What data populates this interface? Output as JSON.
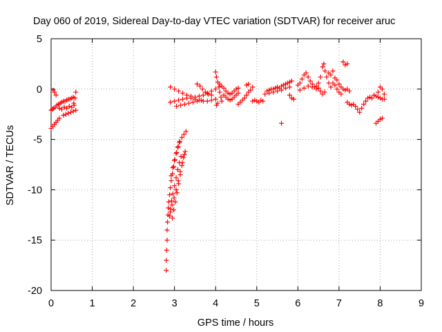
{
  "chart_data": {
    "type": "scatter",
    "title": "Day 060 of 2019, Sidereal Day-to-day VTEC variation (SDTVAR) for receiver aruc",
    "xlabel": "GPS time / hours",
    "ylabel": "SDTVAR / TECUs",
    "xlim": [
      0,
      9
    ],
    "ylim": [
      -20,
      5
    ],
    "x_ticks": [
      0,
      1,
      2,
      3,
      4,
      5,
      6,
      7,
      8,
      9
    ],
    "y_ticks": [
      -20,
      -15,
      -10,
      -5,
      0,
      5
    ],
    "x_tick_labels": [
      "0",
      "1",
      "2",
      "3",
      "4",
      "5",
      "6",
      "7",
      "8",
      "9"
    ],
    "y_tick_labels": [
      "-20",
      "-15",
      "-10",
      "-5",
      "0",
      "5"
    ],
    "grid": true,
    "marker": "+",
    "series": [
      {
        "name": "SDTVAR",
        "color": "#ff0000",
        "points": [
          [
            0.0,
            -2.1
          ],
          [
            0.03,
            -2.0
          ],
          [
            0.06,
            -1.9
          ],
          [
            0.1,
            -1.8
          ],
          [
            0.14,
            -1.6
          ],
          [
            0.18,
            -1.5
          ],
          [
            0.22,
            -1.4
          ],
          [
            0.26,
            -1.3
          ],
          [
            0.3,
            -1.2
          ],
          [
            0.34,
            -1.2
          ],
          [
            0.38,
            -1.1
          ],
          [
            0.42,
            -1.0
          ],
          [
            0.46,
            -1.0
          ],
          [
            0.5,
            -0.9
          ],
          [
            0.54,
            -0.8
          ],
          [
            0.05,
            -0.1
          ],
          [
            0.08,
            -0.3
          ],
          [
            0.12,
            -0.6
          ],
          [
            0.0,
            -3.9
          ],
          [
            0.04,
            -3.7
          ],
          [
            0.08,
            -3.5
          ],
          [
            0.12,
            -3.3
          ],
          [
            0.16,
            -3.1
          ],
          [
            0.2,
            -2.9
          ],
          [
            0.3,
            -2.6
          ],
          [
            0.36,
            -2.5
          ],
          [
            0.42,
            -2.4
          ],
          [
            0.48,
            -2.3
          ],
          [
            0.54,
            -2.2
          ],
          [
            0.6,
            -2.1
          ],
          [
            0.2,
            -1.9
          ],
          [
            0.26,
            -2.0
          ],
          [
            0.32,
            -1.8
          ],
          [
            0.38,
            -1.9
          ],
          [
            0.44,
            -1.7
          ],
          [
            0.5,
            -1.8
          ],
          [
            0.56,
            -1.6
          ],
          [
            0.6,
            -0.3
          ],
          [
            0.58,
            -0.9
          ],
          [
            0.55,
            -1.4
          ],
          [
            2.8,
            -18.0
          ],
          [
            2.8,
            -17.0
          ],
          [
            2.81,
            -16.0
          ],
          [
            2.82,
            -15.0
          ],
          [
            2.82,
            -14.0
          ],
          [
            2.83,
            -13.2
          ],
          [
            2.84,
            -12.5
          ],
          [
            2.85,
            -11.8
          ],
          [
            2.86,
            -11.2
          ],
          [
            2.88,
            -10.5
          ],
          [
            2.9,
            -9.8
          ],
          [
            2.92,
            -9.1
          ],
          [
            2.95,
            -8.4
          ],
          [
            2.98,
            -7.7
          ],
          [
            3.01,
            -7.0
          ],
          [
            3.05,
            -6.3
          ],
          [
            3.09,
            -5.7
          ],
          [
            3.13,
            -5.2
          ],
          [
            3.18,
            -4.8
          ],
          [
            3.23,
            -4.5
          ],
          [
            3.28,
            -4.2
          ],
          [
            2.88,
            -12.6
          ],
          [
            2.9,
            -11.9
          ],
          [
            2.93,
            -11.1
          ],
          [
            2.96,
            -10.4
          ],
          [
            3.0,
            -9.6
          ],
          [
            3.04,
            -8.8
          ],
          [
            3.08,
            -8.0
          ],
          [
            3.12,
            -7.3
          ],
          [
            3.16,
            -6.7
          ],
          [
            2.95,
            -12.8
          ],
          [
            2.98,
            -12.0
          ],
          [
            3.02,
            -11.2
          ],
          [
            3.06,
            -10.3
          ],
          [
            3.1,
            -9.4
          ],
          [
            3.14,
            -8.5
          ],
          [
            3.18,
            -7.6
          ],
          [
            3.22,
            -6.8
          ],
          [
            3.26,
            -6.2
          ],
          [
            2.9,
            -12.2
          ],
          [
            2.94,
            -11.5
          ],
          [
            2.99,
            -10.8
          ],
          [
            3.04,
            -10.0
          ],
          [
            3.09,
            -9.1
          ],
          [
            3.14,
            -8.2
          ],
          [
            3.19,
            -7.3
          ],
          [
            3.24,
            -6.5
          ],
          [
            2.92,
            -8.6
          ],
          [
            2.96,
            -7.8
          ],
          [
            3.0,
            -7.1
          ],
          [
            3.04,
            -6.4
          ],
          [
            3.08,
            -5.8
          ],
          [
            3.12,
            -5.3
          ],
          [
            2.9,
            0.2
          ],
          [
            3.0,
            0.0
          ],
          [
            3.1,
            -0.2
          ],
          [
            3.2,
            -0.4
          ],
          [
            3.3,
            -0.6
          ],
          [
            3.4,
            -0.7
          ],
          [
            3.5,
            -0.8
          ],
          [
            3.6,
            -0.7
          ],
          [
            3.7,
            -0.6
          ],
          [
            3.8,
            -0.4
          ],
          [
            3.9,
            -0.2
          ],
          [
            4.0,
            0.0
          ],
          [
            2.9,
            -1.3
          ],
          [
            3.0,
            -1.2
          ],
          [
            3.1,
            -1.1
          ],
          [
            3.2,
            -1.0
          ],
          [
            3.3,
            -0.9
          ],
          [
            3.4,
            -0.9
          ],
          [
            3.5,
            -1.0
          ],
          [
            3.6,
            -1.1
          ],
          [
            3.7,
            -1.2
          ],
          [
            3.8,
            -1.2
          ],
          [
            3.9,
            -1.1
          ],
          [
            4.0,
            -1.0
          ],
          [
            3.05,
            -1.7
          ],
          [
            3.15,
            -1.6
          ],
          [
            3.25,
            -1.5
          ],
          [
            3.35,
            -1.4
          ],
          [
            3.45,
            -1.3
          ],
          [
            3.55,
            -1.2
          ],
          [
            3.65,
            -1.1
          ],
          [
            3.55,
            0.5
          ],
          [
            3.62,
            0.3
          ],
          [
            3.68,
            0.0
          ],
          [
            3.75,
            -0.3
          ],
          [
            3.82,
            -0.5
          ],
          [
            3.9,
            -0.6
          ],
          [
            4.0,
            1.7
          ],
          [
            4.02,
            1.2
          ],
          [
            4.05,
            0.7
          ],
          [
            4.08,
            0.2
          ],
          [
            4.1,
            -0.3
          ],
          [
            4.13,
            -0.8
          ],
          [
            4.15,
            -1.2
          ],
          [
            4.02,
            -1.6
          ],
          [
            4.05,
            -1.4
          ],
          [
            4.1,
            0.5
          ],
          [
            4.15,
            0.3
          ],
          [
            4.2,
            0.1
          ],
          [
            4.25,
            -0.2
          ],
          [
            4.3,
            -0.4
          ],
          [
            4.35,
            -0.5
          ],
          [
            4.4,
            -0.4
          ],
          [
            4.45,
            -0.2
          ],
          [
            4.5,
            0.0
          ],
          [
            4.55,
            0.1
          ],
          [
            4.2,
            -0.6
          ],
          [
            4.25,
            -0.8
          ],
          [
            4.3,
            -1.0
          ],
          [
            4.35,
            -1.1
          ],
          [
            4.4,
            -1.0
          ],
          [
            4.45,
            -0.8
          ],
          [
            4.5,
            -0.6
          ],
          [
            4.55,
            -0.4
          ],
          [
            4.55,
            -1.5
          ],
          [
            4.6,
            -1.3
          ],
          [
            4.65,
            -1.1
          ],
          [
            4.7,
            -0.9
          ],
          [
            4.75,
            -0.6
          ],
          [
            4.8,
            -0.3
          ],
          [
            4.85,
            -0.1
          ],
          [
            4.9,
            0.2
          ],
          [
            4.75,
            0.4
          ],
          [
            4.8,
            0.5
          ],
          [
            4.9,
            -1.2
          ],
          [
            4.95,
            -1.1
          ],
          [
            5.0,
            -1.2
          ],
          [
            5.05,
            -1.3
          ],
          [
            5.1,
            -1.1
          ],
          [
            5.15,
            -1.2
          ],
          [
            5.2,
            -0.5
          ],
          [
            5.25,
            -0.2
          ],
          [
            5.3,
            -0.1
          ],
          [
            5.35,
            0.0
          ],
          [
            5.4,
            0.0
          ],
          [
            5.45,
            0.1
          ],
          [
            5.5,
            0.2
          ],
          [
            5.55,
            0.1
          ],
          [
            5.6,
            0.3
          ],
          [
            5.65,
            0.4
          ],
          [
            5.7,
            0.5
          ],
          [
            5.75,
            0.6
          ],
          [
            5.8,
            0.7
          ],
          [
            5.85,
            0.8
          ],
          [
            5.3,
            -0.4
          ],
          [
            5.4,
            -0.3
          ],
          [
            5.5,
            -0.2
          ],
          [
            5.6,
            -0.1
          ],
          [
            5.7,
            0.1
          ],
          [
            5.8,
            0.2
          ],
          [
            5.6,
            -3.4
          ],
          [
            5.8,
            -0.6
          ],
          [
            5.85,
            -0.9
          ],
          [
            5.9,
            -1.0
          ],
          [
            6.0,
            0.4
          ],
          [
            6.05,
            0.6
          ],
          [
            6.1,
            1.0
          ],
          [
            6.15,
            1.4
          ],
          [
            6.2,
            1.6
          ],
          [
            6.25,
            1.2
          ],
          [
            6.3,
            0.8
          ],
          [
            6.35,
            0.5
          ],
          [
            6.4,
            0.2
          ],
          [
            6.45,
            0.0
          ],
          [
            6.05,
            -0.1
          ],
          [
            6.15,
            0.1
          ],
          [
            6.25,
            0.3
          ],
          [
            6.35,
            0.2
          ],
          [
            6.45,
            0.3
          ],
          [
            6.5,
            0.6
          ],
          [
            6.55,
            1.2
          ],
          [
            6.6,
            2.2
          ],
          [
            6.63,
            2.5
          ],
          [
            6.66,
            1.8
          ],
          [
            6.7,
            1.2
          ],
          [
            6.75,
            0.6
          ],
          [
            6.8,
            0.2
          ],
          [
            6.85,
            0.6
          ],
          [
            6.9,
            1.1
          ],
          [
            6.95,
            0.9
          ],
          [
            7.0,
            0.5
          ],
          [
            7.05,
            0.2
          ],
          [
            7.1,
            0.0
          ],
          [
            7.15,
            -0.1
          ],
          [
            7.2,
            0.0
          ],
          [
            7.25,
            -0.2
          ],
          [
            6.5,
            0.1
          ],
          [
            6.55,
            -0.2
          ],
          [
            6.6,
            -0.5
          ],
          [
            6.65,
            -0.3
          ],
          [
            6.75,
            1.6
          ],
          [
            6.8,
            1.4
          ],
          [
            6.85,
            1.8
          ],
          [
            6.9,
            0.4
          ],
          [
            6.95,
            0.0
          ],
          [
            7.0,
            -0.3
          ],
          [
            7.05,
            -0.5
          ],
          [
            7.1,
            2.7
          ],
          [
            7.15,
            2.4
          ],
          [
            7.2,
            2.5
          ],
          [
            7.2,
            -1.3
          ],
          [
            7.25,
            -1.5
          ],
          [
            7.3,
            -1.6
          ],
          [
            7.35,
            -1.5
          ],
          [
            7.4,
            -1.7
          ],
          [
            7.45,
            -2.0
          ],
          [
            7.5,
            -2.3
          ],
          [
            7.55,
            -1.9
          ],
          [
            7.6,
            -1.5
          ],
          [
            7.65,
            -1.2
          ],
          [
            7.7,
            -0.9
          ],
          [
            7.75,
            -0.8
          ],
          [
            7.8,
            -0.9
          ],
          [
            7.85,
            -0.6
          ],
          [
            7.9,
            -0.7
          ],
          [
            7.95,
            -0.8
          ],
          [
            8.0,
            -0.9
          ],
          [
            8.05,
            -1.0
          ],
          [
            8.1,
            -1.0
          ],
          [
            7.95,
            -0.3
          ],
          [
            8.0,
            0.2
          ],
          [
            8.05,
            0.0
          ],
          [
            8.1,
            -0.5
          ],
          [
            7.9,
            -3.4
          ],
          [
            7.95,
            -3.2
          ],
          [
            8.0,
            -3.0
          ],
          [
            8.05,
            -2.9
          ]
        ]
      }
    ]
  }
}
